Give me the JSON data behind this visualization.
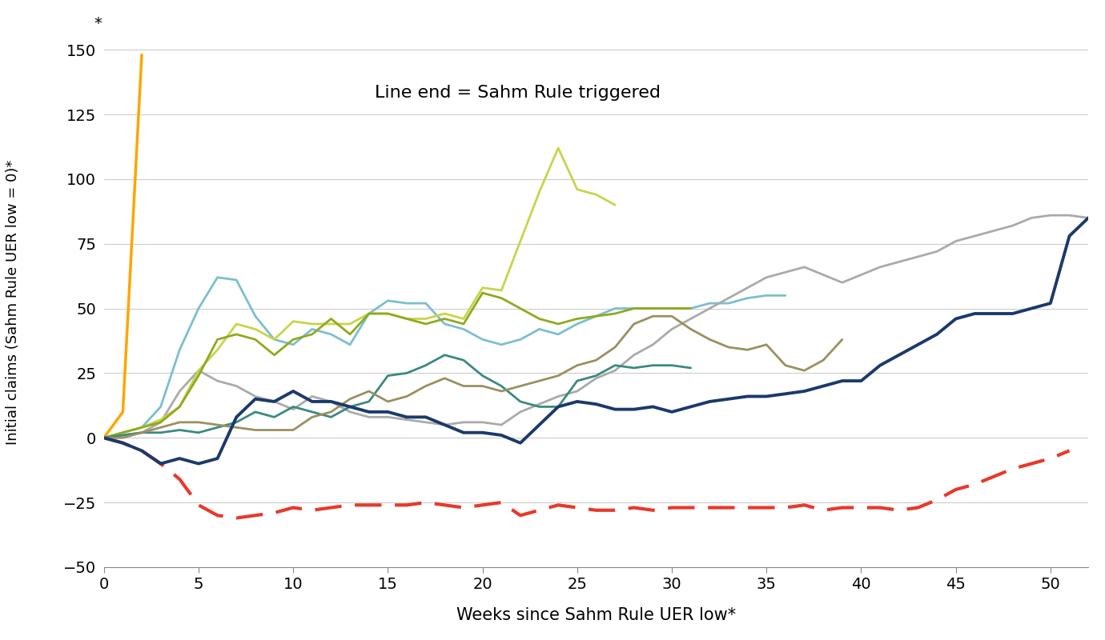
{
  "annotation": "Line end = Sahm Rule triggered",
  "xlabel": "Weeks since Sahm Rule UER low*",
  "ylabel": "Initial claims (Sahm Rule UER low = 0)*",
  "xlim": [
    0,
    52
  ],
  "ylim": [
    -50,
    155
  ],
  "yticks": [
    -50,
    -25,
    0,
    25,
    50,
    75,
    100,
    125,
    150
  ],
  "xticks": [
    0,
    5,
    10,
    15,
    20,
    25,
    30,
    35,
    40,
    45,
    50
  ],
  "series": [
    {
      "name": "orange_spike",
      "color": "#FFA500",
      "linewidth": 2.5,
      "linestyle": "solid",
      "data_x": [
        0,
        1,
        2
      ],
      "data_y": [
        0,
        10,
        148
      ]
    },
    {
      "name": "red_dashed",
      "color": "#E8392A",
      "linewidth": 3.0,
      "linestyle": "dashed",
      "data_x": [
        0,
        1,
        2,
        3,
        4,
        5,
        6,
        7,
        8,
        9,
        10,
        11,
        12,
        13,
        14,
        15,
        16,
        17,
        18,
        19,
        20,
        21,
        22,
        23,
        24,
        25,
        26,
        27,
        28,
        29,
        30,
        31,
        32,
        33,
        34,
        35,
        36,
        37,
        38,
        39,
        40,
        41,
        42,
        43,
        44,
        45,
        46,
        47,
        48,
        49,
        50,
        51
      ],
      "data_y": [
        0,
        -2,
        -5,
        -10,
        -16,
        -26,
        -30,
        -31,
        -30,
        -29,
        -27,
        -28,
        -27,
        -26,
        -26,
        -26,
        -26,
        -25,
        -26,
        -27,
        -26,
        -25,
        -30,
        -28,
        -26,
        -27,
        -28,
        -28,
        -27,
        -28,
        -27,
        -27,
        -27,
        -27,
        -27,
        -27,
        -27,
        -26,
        -28,
        -27,
        -27,
        -27,
        -28,
        -27,
        -24,
        -20,
        -18,
        -15,
        -12,
        -10,
        -8,
        -5
      ]
    },
    {
      "name": "light_blue",
      "color": "#7BBFCF",
      "linewidth": 2.0,
      "linestyle": "solid",
      "data_x": [
        0,
        1,
        2,
        3,
        4,
        5,
        6,
        7,
        8,
        9,
        10,
        11,
        12,
        13,
        14,
        15,
        16,
        17,
        18,
        19,
        20,
        21,
        22,
        23,
        24,
        25,
        26,
        27,
        28,
        29,
        30,
        31,
        32,
        33,
        34,
        35,
        36
      ],
      "data_y": [
        0,
        2,
        4,
        12,
        34,
        50,
        62,
        61,
        47,
        38,
        36,
        42,
        40,
        36,
        48,
        53,
        52,
        52,
        44,
        42,
        38,
        36,
        38,
        42,
        40,
        44,
        47,
        50,
        50,
        50,
        50,
        50,
        52,
        52,
        54,
        55,
        55
      ]
    },
    {
      "name": "gray",
      "color": "#AAAAAA",
      "linewidth": 2.0,
      "linestyle": "solid",
      "data_x": [
        0,
        1,
        2,
        3,
        4,
        5,
        6,
        7,
        8,
        9,
        10,
        11,
        12,
        13,
        14,
        15,
        16,
        17,
        18,
        19,
        20,
        21,
        22,
        23,
        24,
        25,
        26,
        27,
        28,
        29,
        30,
        31,
        32,
        33,
        34,
        35,
        36,
        37,
        38,
        39,
        40,
        41,
        42,
        43,
        44,
        45,
        46,
        47,
        48,
        49,
        50,
        51,
        52
      ],
      "data_y": [
        0,
        1,
        2,
        6,
        18,
        26,
        22,
        20,
        16,
        14,
        11,
        16,
        14,
        10,
        8,
        8,
        7,
        6,
        5,
        6,
        6,
        5,
        10,
        13,
        16,
        18,
        23,
        26,
        32,
        36,
        42,
        46,
        50,
        54,
        58,
        62,
        64,
        66,
        63,
        60,
        63,
        66,
        68,
        70,
        72,
        76,
        78,
        80,
        82,
        85,
        86,
        86,
        85
      ]
    },
    {
      "name": "yellow_green",
      "color": "#C8D44A",
      "linewidth": 2.0,
      "linestyle": "solid",
      "data_x": [
        0,
        1,
        2,
        3,
        4,
        5,
        6,
        7,
        8,
        9,
        10,
        11,
        12,
        13,
        14,
        15,
        16,
        17,
        18,
        19,
        20,
        21,
        22,
        23,
        24,
        25,
        26,
        27
      ],
      "data_y": [
        0,
        2,
        4,
        7,
        12,
        26,
        34,
        44,
        42,
        38,
        45,
        44,
        44,
        44,
        48,
        48,
        46,
        46,
        48,
        46,
        58,
        57,
        76,
        95,
        112,
        96,
        94,
        90
      ]
    },
    {
      "name": "olive_green",
      "color": "#8FAA1E",
      "linewidth": 2.0,
      "linestyle": "solid",
      "data_x": [
        0,
        1,
        2,
        3,
        4,
        5,
        6,
        7,
        8,
        9,
        10,
        11,
        12,
        13,
        14,
        15,
        16,
        17,
        18,
        19,
        20,
        21,
        22,
        23,
        24,
        25,
        26,
        27,
        28,
        29,
        30,
        31
      ],
      "data_y": [
        0,
        2,
        4,
        6,
        12,
        24,
        38,
        40,
        38,
        32,
        38,
        40,
        46,
        40,
        48,
        48,
        46,
        44,
        46,
        44,
        56,
        54,
        50,
        46,
        44,
        46,
        47,
        48,
        50,
        50,
        50,
        50
      ]
    },
    {
      "name": "teal",
      "color": "#3A8A80",
      "linewidth": 2.0,
      "linestyle": "solid",
      "data_x": [
        0,
        1,
        2,
        3,
        4,
        5,
        6,
        7,
        8,
        9,
        10,
        11,
        12,
        13,
        14,
        15,
        16,
        17,
        18,
        19,
        20,
        21,
        22,
        23,
        24,
        25,
        26,
        27,
        28,
        29,
        30,
        31
      ],
      "data_y": [
        0,
        1,
        2,
        2,
        3,
        2,
        4,
        6,
        10,
        8,
        12,
        10,
        8,
        12,
        14,
        24,
        25,
        28,
        32,
        30,
        24,
        20,
        14,
        12,
        12,
        22,
        24,
        28,
        27,
        28,
        28,
        27
      ]
    },
    {
      "name": "dark_khaki",
      "color": "#9A9060",
      "linewidth": 2.0,
      "linestyle": "solid",
      "data_x": [
        0,
        1,
        2,
        3,
        4,
        5,
        6,
        7,
        8,
        9,
        10,
        11,
        12,
        13,
        14,
        15,
        16,
        17,
        18,
        19,
        20,
        21,
        22,
        23,
        24,
        25,
        26,
        27,
        28,
        29,
        30,
        31,
        32,
        33,
        34,
        35,
        36,
        37,
        38,
        39
      ],
      "data_y": [
        0,
        0,
        2,
        4,
        6,
        6,
        5,
        4,
        3,
        3,
        3,
        8,
        10,
        15,
        18,
        14,
        16,
        20,
        23,
        20,
        20,
        18,
        20,
        22,
        24,
        28,
        30,
        35,
        44,
        47,
        47,
        42,
        38,
        35,
        34,
        36,
        28,
        26,
        30,
        38
      ]
    },
    {
      "name": "dark_navy",
      "color": "#1B3A6B",
      "linewidth": 2.8,
      "linestyle": "solid",
      "data_x": [
        0,
        1,
        2,
        3,
        4,
        5,
        6,
        7,
        8,
        9,
        10,
        11,
        12,
        13,
        14,
        15,
        16,
        17,
        18,
        19,
        20,
        21,
        22,
        23,
        24,
        25,
        26,
        27,
        28,
        29,
        30,
        31,
        32,
        33,
        34,
        35,
        36,
        37,
        38,
        39,
        40,
        41,
        42,
        43,
        44,
        45,
        46,
        47,
        48,
        49,
        50,
        51,
        52
      ],
      "data_y": [
        0,
        -2,
        -5,
        -10,
        -8,
        -10,
        -8,
        8,
        15,
        14,
        18,
        14,
        14,
        12,
        10,
        10,
        8,
        8,
        5,
        2,
        2,
        1,
        -2,
        5,
        12,
        14,
        13,
        11,
        11,
        12,
        10,
        12,
        14,
        15,
        16,
        16,
        17,
        18,
        20,
        22,
        22,
        28,
        32,
        36,
        40,
        46,
        48,
        48,
        48,
        50,
        52,
        78,
        85
      ]
    }
  ],
  "background_color": "#FFFFFF",
  "grid_color": "#CCCCCC"
}
